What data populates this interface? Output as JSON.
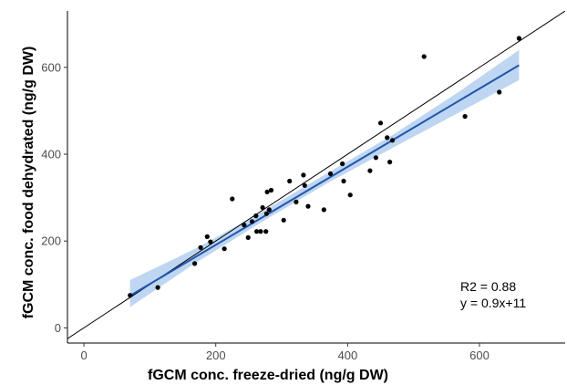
{
  "chart_data": {
    "type": "scatter",
    "title": "",
    "xlabel": "fGCM conc. freeze-dried (ng/g DW)",
    "ylabel": "fGCM conc. food dehydrated (ng/g DW)",
    "xlim": [
      -25,
      730
    ],
    "ylim": [
      -35,
      730
    ],
    "xticks": [
      0,
      200,
      400,
      600
    ],
    "yticks": [
      0,
      200,
      400,
      600
    ],
    "grid": false,
    "points": [
      {
        "x": 70,
        "y": 75
      },
      {
        "x": 112,
        "y": 93
      },
      {
        "x": 168,
        "y": 148
      },
      {
        "x": 177,
        "y": 185
      },
      {
        "x": 187,
        "y": 210
      },
      {
        "x": 192,
        "y": 198
      },
      {
        "x": 213,
        "y": 182
      },
      {
        "x": 225,
        "y": 297
      },
      {
        "x": 243,
        "y": 237
      },
      {
        "x": 249,
        "y": 208
      },
      {
        "x": 255,
        "y": 245
      },
      {
        "x": 261,
        "y": 258
      },
      {
        "x": 262,
        "y": 222
      },
      {
        "x": 268,
        "y": 222
      },
      {
        "x": 271,
        "y": 277
      },
      {
        "x": 276,
        "y": 222
      },
      {
        "x": 277,
        "y": 263
      },
      {
        "x": 278,
        "y": 313
      },
      {
        "x": 281,
        "y": 272
      },
      {
        "x": 284,
        "y": 317
      },
      {
        "x": 303,
        "y": 248
      },
      {
        "x": 312,
        "y": 338
      },
      {
        "x": 322,
        "y": 290
      },
      {
        "x": 333,
        "y": 352
      },
      {
        "x": 335,
        "y": 328
      },
      {
        "x": 340,
        "y": 280
      },
      {
        "x": 364,
        "y": 272
      },
      {
        "x": 374,
        "y": 355
      },
      {
        "x": 392,
        "y": 378
      },
      {
        "x": 394,
        "y": 338
      },
      {
        "x": 404,
        "y": 306
      },
      {
        "x": 434,
        "y": 362
      },
      {
        "x": 443,
        "y": 392
      },
      {
        "x": 450,
        "y": 472
      },
      {
        "x": 460,
        "y": 438
      },
      {
        "x": 464,
        "y": 382
      },
      {
        "x": 468,
        "y": 432
      },
      {
        "x": 516,
        "y": 625
      },
      {
        "x": 578,
        "y": 487
      },
      {
        "x": 630,
        "y": 543
      },
      {
        "x": 660,
        "y": 667
      }
    ],
    "fit_line": {
      "slope": 0.9,
      "intercept": 11,
      "x_range": [
        70,
        660
      ],
      "color": "#2255aa"
    },
    "confidence_band": {
      "x": [
        70,
        170,
        270,
        370,
        470,
        570,
        660
      ],
      "lower": [
        48,
        150,
        244,
        334,
        416,
        497,
        571
      ],
      "upper": [
        110,
        183,
        267,
        357,
        446,
        545,
        640
      ],
      "color": "#a8c8ee"
    },
    "reference_line": {
      "slope": 1,
      "intercept": 0,
      "color": "#000000"
    },
    "annotations": [
      "R2 = 0.88",
      "y = 0.9x+11"
    ],
    "point_color": "#000000"
  }
}
